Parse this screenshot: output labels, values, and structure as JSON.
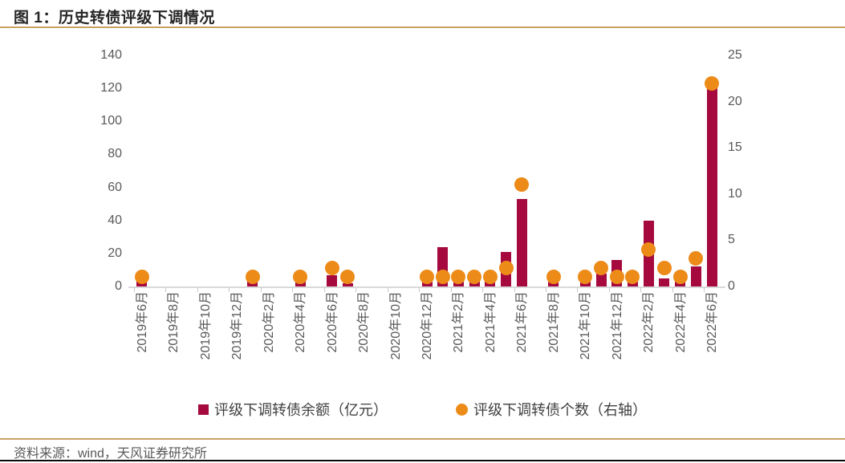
{
  "figure": {
    "title": "图 1：历史转债评级下调情况",
    "source": "资料来源：wind，天风证券研究所"
  },
  "colors": {
    "bar": "#A5093E",
    "dot": "#ED8B18",
    "axis_text": "#595959",
    "axis_line": "#D9D9D9",
    "rule_gold": "#C8A264",
    "rule_black": "#0A0A0A"
  },
  "legend": [
    {
      "label": "评级下调转债余额（亿元）",
      "marker": "square",
      "color": "#A5093E"
    },
    {
      "label": "评级下调转债个数（右轴）",
      "marker": "circle",
      "color": "#ED8B18"
    }
  ],
  "chart_data": {
    "type": "bar",
    "title": "图 1：历史转债评级下调情况",
    "xlabel": "",
    "ylabel_left": "评级下调转债余额（亿元）",
    "ylabel_right": "评级下调转债个数（右轴）",
    "categories": [
      "2019年6月",
      "2019年7月",
      "2019年8月",
      "2019年9月",
      "2019年10月",
      "2019年11月",
      "2019年12月",
      "2020年1月",
      "2020年2月",
      "2020年3月",
      "2020年4月",
      "2020年5月",
      "2020年6月",
      "2020年7月",
      "2020年8月",
      "2020年9月",
      "2020年10月",
      "2020年11月",
      "2020年12月",
      "2021年1月",
      "2021年2月",
      "2021年3月",
      "2021年4月",
      "2021年5月",
      "2021年6月",
      "2021年7月",
      "2021年8月",
      "2021年9月",
      "2021年10月",
      "2021年11月",
      "2021年12月",
      "2022年1月",
      "2022年2月",
      "2022年3月",
      "2022年4月",
      "2022年5月",
      "2022年6月"
    ],
    "x_tick_labels": [
      "2019年6月",
      "2019年8月",
      "2019年10月",
      "2019年12月",
      "2020年2月",
      "2020年4月",
      "2020年6月",
      "2020年8月",
      "2020年10月",
      "2020年12月",
      "2021年2月",
      "2021年4月",
      "2021年6月",
      "2021年8月",
      "2021年10月",
      "2021年12月",
      "2022年2月",
      "2022年4月",
      "2022年6月"
    ],
    "x_tick_every": 2,
    "series": [
      {
        "name": "评级下调转债余额（亿元）",
        "type": "bar",
        "axis": "left",
        "color": "#A5093E",
        "values": [
          4,
          0,
          0,
          0,
          0,
          0,
          0,
          8,
          0,
          0,
          8,
          0,
          7,
          2,
          0,
          0,
          0,
          0,
          3,
          24,
          3,
          8,
          3,
          21,
          53,
          0,
          3,
          0,
          3,
          8,
          16,
          3,
          40,
          5,
          4,
          12,
          123
        ]
      },
      {
        "name": "评级下调转债个数（右轴）",
        "type": "scatter",
        "axis": "right",
        "color": "#ED8B18",
        "values": [
          1,
          0,
          0,
          0,
          0,
          0,
          0,
          1,
          0,
          0,
          1,
          0,
          2,
          1,
          0,
          0,
          0,
          0,
          1,
          1,
          1,
          1,
          1,
          2,
          11,
          0,
          1,
          0,
          1,
          2,
          1,
          1,
          4,
          2,
          1,
          3,
          22
        ]
      }
    ],
    "left_axis": {
      "ticks": [
        0,
        20,
        40,
        60,
        80,
        100,
        120,
        140
      ],
      "range": [
        0,
        140
      ],
      "grid": false
    },
    "right_axis": {
      "ticks": [
        0,
        5,
        10,
        15,
        20,
        25
      ],
      "range": [
        0,
        25
      ],
      "grid": false
    },
    "legend_position": "bottom"
  }
}
